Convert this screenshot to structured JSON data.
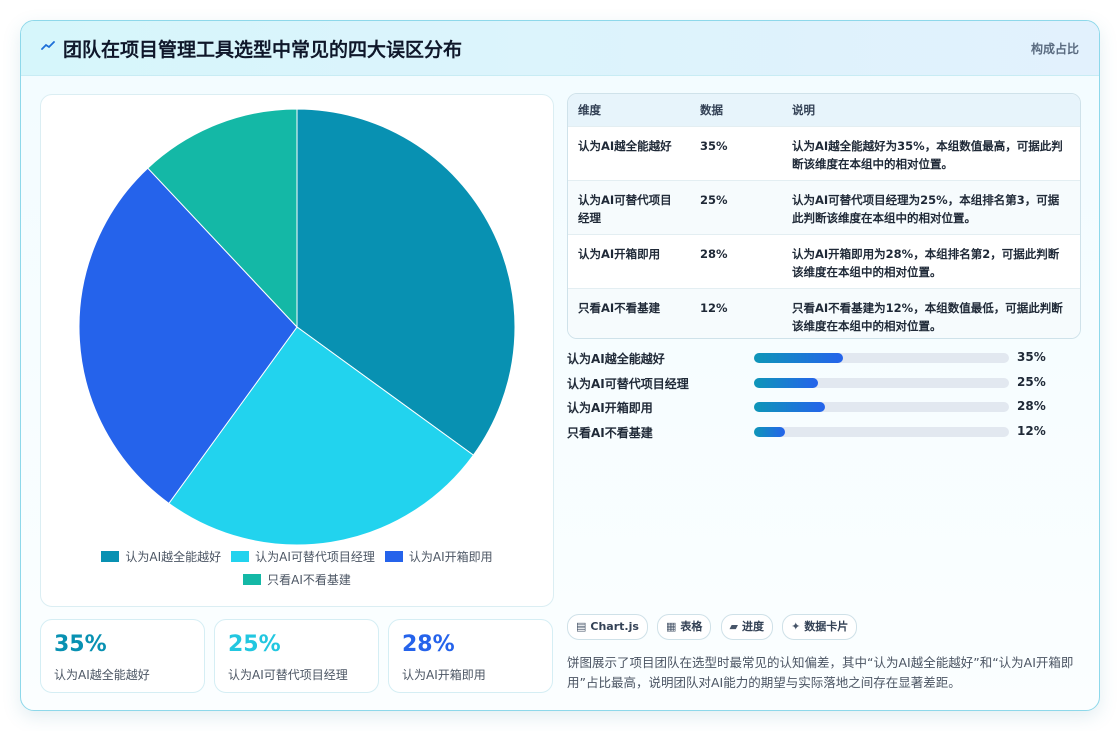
{
  "header": {
    "title": "团队在项目管理工具选型中常见的四大误区分布",
    "subtitle": "构成占比"
  },
  "colors": {
    "series": [
      "#0891b2",
      "#22d3ee",
      "#2563eb",
      "#14b8a6"
    ]
  },
  "chart_data": {
    "type": "pie",
    "title": "",
    "categories": [
      "认为AI越全能越好",
      "认为AI可替代项目经理",
      "认为AI开箱即用",
      "只看AI不看基建"
    ],
    "values": [
      35,
      25,
      28,
      12
    ],
    "legend": "bottom"
  },
  "stats": [
    {
      "value": "35%",
      "label": "认为AI越全能越好"
    },
    {
      "value": "25%",
      "label": "认为AI可替代项目经理"
    },
    {
      "value": "28%",
      "label": "认为AI开箱即用"
    }
  ],
  "table": {
    "headers": [
      "维度",
      "数据",
      "说明"
    ],
    "rows": [
      {
        "dimension": "认为AI越全能越好",
        "value": "35%",
        "note": "认为AI越全能越好为35%，本组数值最高，可据此判断该维度在本组中的相对位置。"
      },
      {
        "dimension": "认为AI可替代项目经理",
        "value": "25%",
        "note": "认为AI可替代项目经理为25%，本组排名第3，可据此判断该维度在本组中的相对位置。"
      },
      {
        "dimension": "认为AI开箱即用",
        "value": "28%",
        "note": "认为AI开箱即用为28%，本组排名第2，可据此判断该维度在本组中的相对位置。"
      },
      {
        "dimension": "只看AI不看基建",
        "value": "12%",
        "note": "只看AI不看基建为12%，本组数值最低，可据此判断该维度在本组中的相对位置。"
      }
    ]
  },
  "progress": [
    {
      "label": "认为AI越全能越好",
      "value": 35,
      "pct": "35%"
    },
    {
      "label": "认为AI可替代项目经理",
      "value": 25,
      "pct": "25%"
    },
    {
      "label": "认为AI开箱即用",
      "value": 28,
      "pct": "28%"
    },
    {
      "label": "只看AI不看基建",
      "value": 12,
      "pct": "12%"
    }
  ],
  "chips": [
    {
      "icon": "▤",
      "label": "Chart.js"
    },
    {
      "icon": "▦",
      "label": "表格"
    },
    {
      "icon": "▰",
      "label": "进度"
    },
    {
      "icon": "✦",
      "label": "数据卡片"
    }
  ],
  "description": "饼图展示了项目团队在选型时最常见的认知偏差，其中“认为AI越全能越好”和“认为AI开箱即用”占比最高，说明团队对AI能力的期望与实际落地之间存在显著差距。"
}
